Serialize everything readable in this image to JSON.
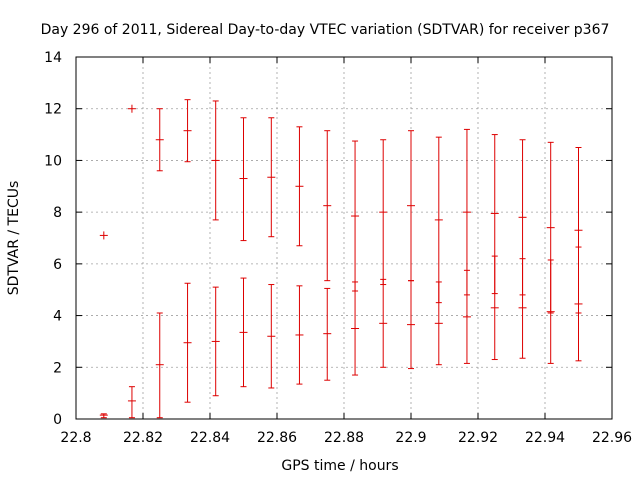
{
  "chart_data": {
    "type": "scatter",
    "title": "Day 296 of 2011, Sidereal Day-to-day VTEC variation (SDTVAR) for receiver p367",
    "xlabel": "GPS time / hours",
    "ylabel": "SDTVAR / TECUs",
    "xlim": [
      22.8,
      22.96
    ],
    "ylim": [
      0,
      14
    ],
    "xticks": [
      22.8,
      22.82,
      22.84,
      22.86,
      22.88,
      22.9,
      22.92,
      22.94,
      22.96
    ],
    "xtick_labels": [
      "22.8",
      "22.82",
      "22.84",
      "22.86",
      "22.88",
      "22.9",
      "22.92",
      "22.94",
      "22.96"
    ],
    "yticks": [
      0,
      2,
      4,
      6,
      8,
      10,
      12,
      14
    ],
    "ytick_labels": [
      "0",
      "2",
      "4",
      "6",
      "8",
      "10",
      "12",
      "14"
    ],
    "grid": true,
    "legend": "none",
    "series_color": "#dd0000",
    "series": [
      {
        "style": "errorbars",
        "points": [
          {
            "x": 22.8083,
            "y": 0.15,
            "low": 0.05,
            "high": 0.2
          },
          {
            "x": 22.8167,
            "y": 0.7,
            "low": 0.05,
            "high": 1.25
          },
          {
            "x": 22.825,
            "y": 2.1,
            "low": 0.05,
            "high": 4.1
          },
          {
            "x": 22.8333,
            "y": 2.95,
            "low": 0.65,
            "high": 5.25
          },
          {
            "x": 22.8417,
            "y": 3.0,
            "low": 0.9,
            "high": 5.1
          },
          {
            "x": 22.85,
            "y": 3.35,
            "low": 1.25,
            "high": 5.45
          },
          {
            "x": 22.8583,
            "y": 3.2,
            "low": 1.2,
            "high": 5.2
          },
          {
            "x": 22.8667,
            "y": 3.25,
            "low": 1.35,
            "high": 5.15
          },
          {
            "x": 22.875,
            "y": 3.3,
            "low": 1.5,
            "high": 5.05
          },
          {
            "x": 22.8833,
            "y": 3.5,
            "low": 1.7,
            "high": 5.3
          },
          {
            "x": 22.8917,
            "y": 3.7,
            "low": 2.0,
            "high": 5.4
          },
          {
            "x": 22.9,
            "y": 3.65,
            "low": 1.95,
            "high": 5.35
          },
          {
            "x": 22.9083,
            "y": 3.7,
            "low": 2.1,
            "high": 5.3
          },
          {
            "x": 22.9167,
            "y": 3.95,
            "low": 2.15,
            "high": 5.75
          },
          {
            "x": 22.925,
            "y": 4.3,
            "low": 2.3,
            "high": 6.3
          },
          {
            "x": 22.9333,
            "y": 4.3,
            "low": 2.35,
            "high": 6.2
          },
          {
            "x": 22.9417,
            "y": 4.15,
            "low": 2.15,
            "high": 6.15
          },
          {
            "x": 22.95,
            "y": 4.45,
            "low": 2.25,
            "high": 6.65
          }
        ]
      },
      {
        "style": "errorbars",
        "points": [
          {
            "x": 22.825,
            "y": 10.8,
            "low": 9.6,
            "high": 12.0
          },
          {
            "x": 22.8333,
            "y": 11.15,
            "low": 9.95,
            "high": 12.35
          },
          {
            "x": 22.8417,
            "y": 10.0,
            "low": 7.7,
            "high": 12.3
          },
          {
            "x": 22.85,
            "y": 9.3,
            "low": 6.9,
            "high": 11.65
          },
          {
            "x": 22.8583,
            "y": 9.35,
            "low": 7.05,
            "high": 11.65
          },
          {
            "x": 22.8667,
            "y": 9.0,
            "low": 6.7,
            "high": 11.3
          },
          {
            "x": 22.875,
            "y": 8.25,
            "low": 5.35,
            "high": 11.15
          },
          {
            "x": 22.8833,
            "y": 7.85,
            "low": 4.95,
            "high": 10.75
          },
          {
            "x": 22.8917,
            "y": 8.0,
            "low": 5.2,
            "high": 10.8
          },
          {
            "x": 22.9,
            "y": 8.25,
            "low": 5.35,
            "high": 11.15
          },
          {
            "x": 22.9083,
            "y": 7.7,
            "low": 4.5,
            "high": 10.9
          },
          {
            "x": 22.9167,
            "y": 8.0,
            "low": 4.8,
            "high": 11.2
          },
          {
            "x": 22.925,
            "y": 7.95,
            "low": 4.85,
            "high": 11.0
          },
          {
            "x": 22.9333,
            "y": 7.8,
            "low": 4.8,
            "high": 10.8
          },
          {
            "x": 22.9417,
            "y": 7.4,
            "low": 4.1,
            "high": 10.7
          },
          {
            "x": 22.95,
            "y": 7.3,
            "low": 4.1,
            "high": 10.5
          }
        ]
      },
      {
        "style": "points",
        "points": [
          {
            "x": 22.8083,
            "y": 7.1
          },
          {
            "x": 22.8167,
            "y": 12.0
          }
        ]
      }
    ]
  }
}
